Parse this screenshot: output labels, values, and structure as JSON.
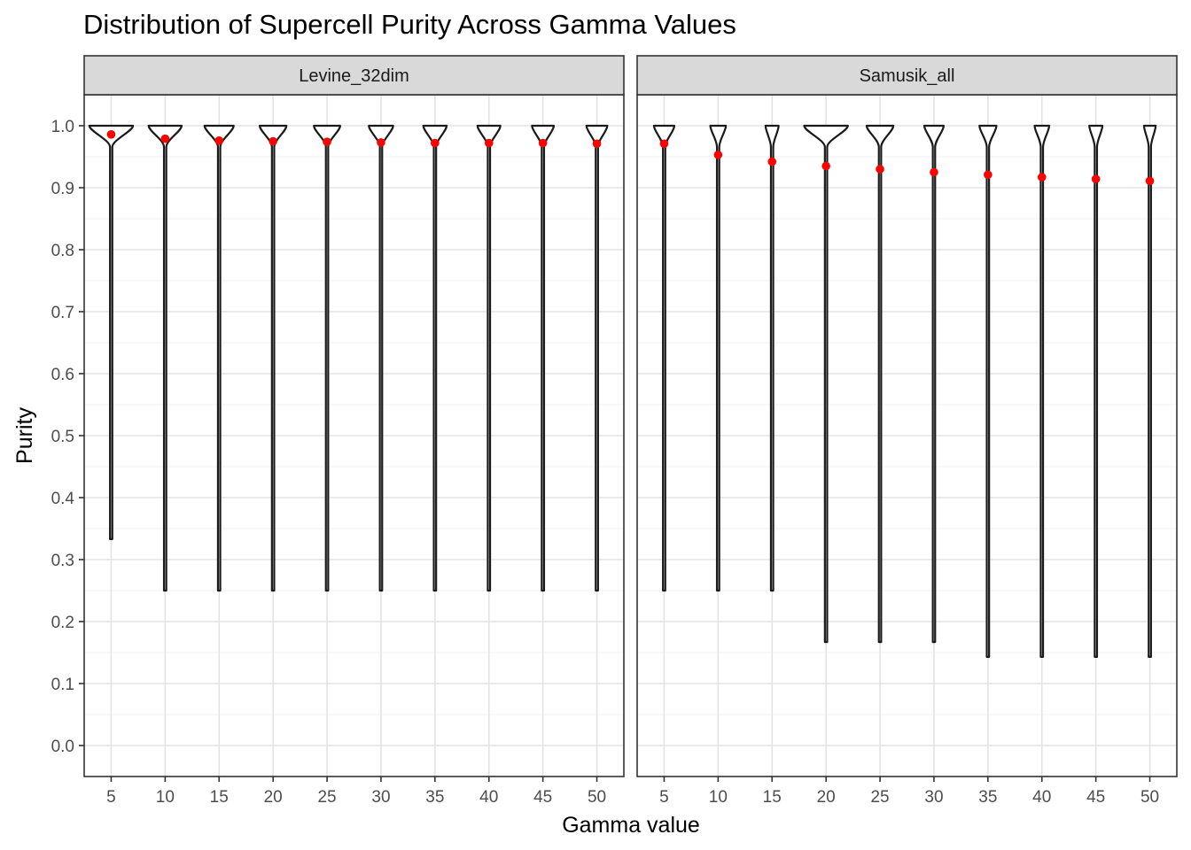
{
  "chart_data": {
    "type": "violin",
    "title": "Distribution of Supercell Purity Across Gamma Values",
    "xlabel": "Gamma value",
    "ylabel": "Purity",
    "categories": [
      "5",
      "10",
      "15",
      "20",
      "25",
      "30",
      "35",
      "40",
      "45",
      "50"
    ],
    "ylim": [
      -0.05,
      1.05
    ],
    "yticks": [
      "0.0",
      "0.1",
      "0.2",
      "0.3",
      "0.4",
      "0.5",
      "0.6",
      "0.7",
      "0.8",
      "0.9",
      "1.0"
    ],
    "grid": true,
    "mean_point_color": "#ff0000",
    "violin_outline_color": "#1a1a1a",
    "strip_fill_color": "#d9d9d9",
    "panels": [
      {
        "name": "Levine_32dim",
        "min": [
          0.333,
          0.25,
          0.25,
          0.25,
          0.25,
          0.25,
          0.25,
          0.25,
          0.25,
          0.25
        ],
        "mean": [
          0.986,
          0.979,
          0.976,
          0.975,
          0.974,
          0.973,
          0.972,
          0.972,
          0.972,
          0.971
        ],
        "top_width": [
          0.9,
          0.68,
          0.6,
          0.55,
          0.54,
          0.5,
          0.48,
          0.47,
          0.45,
          0.43
        ]
      },
      {
        "name": "Samusik_all",
        "min": [
          0.25,
          0.25,
          0.25,
          0.167,
          0.167,
          0.167,
          0.143,
          0.143,
          0.143,
          0.143
        ],
        "mean": [
          0.971,
          0.953,
          0.942,
          0.935,
          0.93,
          0.925,
          0.921,
          0.917,
          0.914,
          0.911
        ],
        "top_width": [
          0.42,
          0.32,
          0.27,
          0.9,
          0.55,
          0.4,
          0.35,
          0.3,
          0.27,
          0.24
        ]
      }
    ]
  }
}
